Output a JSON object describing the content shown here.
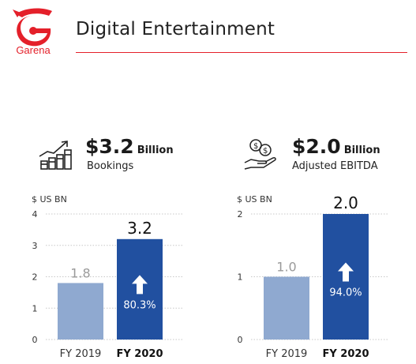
{
  "brand": {
    "logo_text": "Garena",
    "accent_color": "#e4202a"
  },
  "page": {
    "title": "Digital Entertainment"
  },
  "kpis": [
    {
      "value": "$3.2",
      "unit": "Billion",
      "label": "Bookings",
      "icon": "bar-growth-chart-icon"
    },
    {
      "value": "$2.0",
      "unit": "Billion",
      "label": "Adjusted EBITDA",
      "icon": "money-in-hand-icon"
    }
  ],
  "chart_data": [
    {
      "type": "bar",
      "unit_label": "$ US BN",
      "categories": [
        "FY 2019",
        "FY 2020"
      ],
      "values": [
        1.8,
        3.2
      ],
      "value_labels": [
        "1.8",
        "3.2"
      ],
      "ylim": [
        0,
        4
      ],
      "yticks": [
        "0",
        "1",
        "2",
        "3",
        "4"
      ],
      "growth_label": "80.3%",
      "colors": [
        "#8fa9d0",
        "#2150a0"
      ],
      "grid": true
    },
    {
      "type": "bar",
      "unit_label": "$ US BN",
      "categories": [
        "FY 2019",
        "FY 2020"
      ],
      "values": [
        1.0,
        2.0
      ],
      "value_labels": [
        "1.0",
        "2.0"
      ],
      "ylim": [
        0,
        2
      ],
      "yticks": [
        "0",
        "1",
        "2"
      ],
      "growth_label": "94.0%",
      "colors": [
        "#8fa9d0",
        "#2150a0"
      ],
      "grid": true
    }
  ]
}
